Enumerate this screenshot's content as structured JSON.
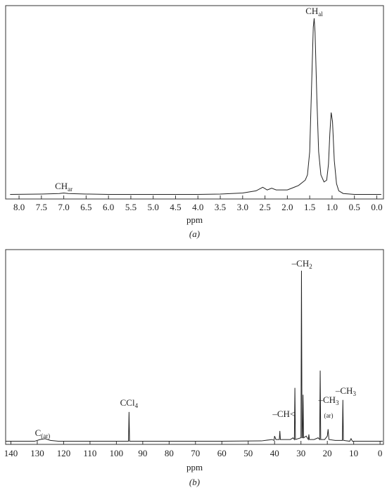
{
  "chart_data": [
    {
      "type": "line",
      "x_label": "ppm",
      "caption": "(a)",
      "xlim": [
        8.3,
        -0.15
      ],
      "ylim": [
        0,
        100
      ],
      "xticks": [
        {
          "value": 8,
          "label": "8.0"
        },
        7.5,
        {
          "value": 7,
          "label": "7.0"
        },
        6.5,
        {
          "value": 6,
          "label": "6.0"
        },
        5.5,
        {
          "value": 5,
          "label": "5.0"
        },
        4.5,
        {
          "value": 4,
          "label": "4.0"
        },
        3.5,
        {
          "value": 3,
          "label": "3.0"
        },
        2.5,
        {
          "value": 2,
          "label": "2.0"
        },
        1.5,
        {
          "value": 1,
          "label": "1.0"
        },
        0.5,
        {
          "value": 0,
          "label": "0.0"
        }
      ],
      "color": "#222",
      "x": [
        8.2,
        7.5,
        7.1,
        7.0,
        6.9,
        6.5,
        6.0,
        5.0,
        4.0,
        3.5,
        3.0,
        2.7,
        2.55,
        2.45,
        2.35,
        2.25,
        2.0,
        1.85,
        1.75,
        1.65,
        1.6,
        1.55,
        1.5,
        1.46,
        1.42,
        1.4,
        1.38,
        1.34,
        1.3,
        1.25,
        1.18,
        1.12,
        1.08,
        1.05,
        1.02,
        0.99,
        0.95,
        0.9,
        0.85,
        0.75,
        0.5,
        0.0,
        -0.1
      ],
      "values": [
        1,
        1.2,
        1.5,
        1.8,
        1.5,
        1.2,
        1,
        1,
        1,
        1.2,
        1.8,
        3,
        5,
        3.5,
        4.5,
        3.5,
        3.5,
        5,
        6,
        8,
        9,
        12,
        25,
        60,
        95,
        100,
        92,
        55,
        25,
        12,
        8,
        9,
        18,
        35,
        47,
        42,
        20,
        7,
        3,
        1.5,
        1,
        1,
        1
      ],
      "annotations": [
        {
          "text": "CH",
          "sub": "ar"
        },
        {
          "text": "CH",
          "sub": "al"
        }
      ]
    },
    {
      "type": "line",
      "x_label": "ppm",
      "caption": "(b)",
      "xlim": [
        142,
        -1.3
      ],
      "ylim": [
        0,
        100
      ],
      "xticks": [
        140,
        130,
        120,
        110,
        100,
        90,
        80,
        70,
        60,
        50,
        40,
        30,
        20,
        10,
        0
      ],
      "color": "#222",
      "x": [
        142,
        131,
        129,
        127,
        125,
        122,
        100,
        95.4,
        95.2,
        95.0,
        60,
        45,
        41,
        40.2,
        40,
        39.5,
        38.2,
        38,
        37.8,
        34,
        33,
        32.5,
        32.3,
        32.1,
        30.0,
        29.8,
        29.6,
        29.4,
        29.2,
        29.0,
        28,
        27.2,
        27,
        26.8,
        25,
        23.5,
        22.9,
        22.7,
        22.5,
        21,
        20,
        19.7,
        19.4,
        17,
        14.3,
        14.1,
        13.9,
        11.5,
        11,
        10.5,
        5,
        -1
      ],
      "values": [
        1,
        1,
        2,
        2.5,
        1.5,
        1,
        1,
        1,
        18,
        1,
        1,
        1.2,
        2,
        1.5,
        4,
        2,
        2,
        7,
        2,
        2,
        3,
        2,
        32,
        2,
        3,
        100,
        3,
        3,
        28,
        3,
        4,
        2,
        5,
        2,
        2,
        3,
        2,
        42,
        2,
        2,
        4,
        8,
        2,
        1.5,
        1.5,
        25,
        1.5,
        1,
        2.5,
        1,
        1,
        1
      ],
      "annotations": [
        {
          "text": "C",
          "sub": "(ar)"
        },
        {
          "text": "CCl",
          "sub": "4"
        },
        {
          "text": "–CH<"
        },
        {
          "text": "–CH",
          "sub": "2"
        },
        {
          "text": "–CH",
          "sub": "3",
          "note": "(ar)"
        },
        {
          "text": "–CH",
          "sub": "3"
        }
      ]
    }
  ]
}
